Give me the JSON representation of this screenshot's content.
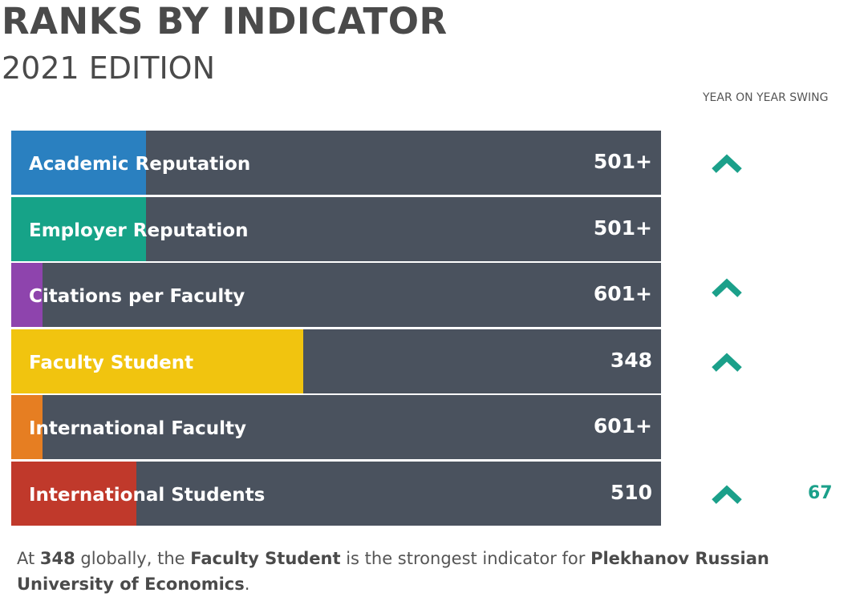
{
  "header": {
    "title": "RANKS BY INDICATOR",
    "subtitle": "2021 EDITION",
    "swing_label": "YEAR ON YEAR SWING"
  },
  "chart_data": {
    "type": "bar",
    "title": "RANKS BY INDICATOR",
    "subtitle": "2021 EDITION",
    "categories": [
      "Academic Reputation",
      "Employer Reputation",
      "Citations per Faculty",
      "Faculty Student",
      "International Faculty",
      "International Students"
    ],
    "ranks": [
      "501+",
      "501+",
      "601+",
      "348",
      "601+",
      "510"
    ],
    "fill_fraction": [
      0.207,
      0.207,
      0.048,
      0.449,
      0.048,
      0.192
    ],
    "colors": [
      "#2a80c0",
      "#16a388",
      "#8e44ad",
      "#f1c40f",
      "#e67e22",
      "#c0392b"
    ],
    "swing_up": [
      true,
      false,
      true,
      true,
      false,
      true
    ],
    "swing_values": [
      "",
      "",
      "",
      "",
      "",
      "67"
    ],
    "swing_color": "#1ba08a",
    "track_color": "#4a525e"
  },
  "caption": {
    "p1": "At ",
    "rank": "348",
    "p2": " globally, the ",
    "indicator": "Faculty Student",
    "p3": "  is the strongest indicator for ",
    "university": "Plekhanov Russian University of Economics",
    "p4": "."
  }
}
